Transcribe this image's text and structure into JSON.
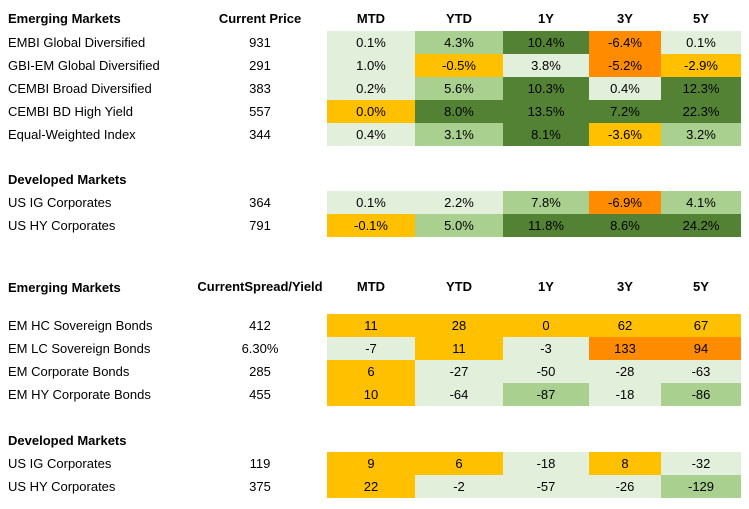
{
  "columns": [
    "MTD",
    "YTD",
    "1Y",
    "3Y",
    "5Y"
  ],
  "table1": {
    "em_title": "Emerging Markets",
    "price_header": "Current Price",
    "em_rows": [
      {
        "name": "EMBI Global Diversified",
        "price": "931",
        "vals": [
          "0.1%",
          "4.3%",
          "10.4%",
          "-6.4%",
          "0.1%"
        ]
      },
      {
        "name": "GBI-EM Global Diversified",
        "price": "291",
        "vals": [
          "1.0%",
          "-0.5%",
          "3.8%",
          "-5.2%",
          "-2.9%"
        ]
      },
      {
        "name": "CEMBI Broad Diversified",
        "price": "383",
        "vals": [
          "0.2%",
          "5.6%",
          "10.3%",
          "0.4%",
          "12.3%"
        ]
      },
      {
        "name": "CEMBI BD High Yield",
        "price": "557",
        "vals": [
          "0.0%",
          "8.0%",
          "13.5%",
          "7.2%",
          "22.3%"
        ]
      },
      {
        "name": "Equal-Weighted Index",
        "price": "344",
        "vals": [
          "0.4%",
          "3.1%",
          "8.1%",
          "-3.6%",
          "3.2%"
        ]
      }
    ],
    "dm_title": "Developed Markets",
    "dm_rows": [
      {
        "name": "US IG Corporates",
        "price": "364",
        "vals": [
          "0.1%",
          "2.2%",
          "7.8%",
          "-6.9%",
          "4.1%"
        ]
      },
      {
        "name": "US HY Corporates",
        "price": "791",
        "vals": [
          "-0.1%",
          "5.0%",
          "11.8%",
          "8.6%",
          "24.2%"
        ]
      }
    ]
  },
  "table2": {
    "em_title": "Emerging Markets",
    "spread_header_line1": "Current",
    "spread_header_line2": "Spread/Yield",
    "em_rows": [
      {
        "name": "EM HC Sovereign Bonds",
        "price": "412",
        "vals": [
          "11",
          "28",
          "0",
          "62",
          "67"
        ]
      },
      {
        "name": "EM LC Sovereign Bonds",
        "price": "6.30%",
        "vals": [
          "-7",
          "11",
          "-3",
          "133",
          "94"
        ]
      },
      {
        "name": "EM Corporate Bonds",
        "price": "285",
        "vals": [
          "6",
          "-27",
          "-50",
          "-28",
          "-63"
        ]
      },
      {
        "name": "EM HY Corporate Bonds",
        "price": "455",
        "vals": [
          "10",
          "-64",
          "-87",
          "-18",
          "-86"
        ]
      }
    ],
    "dm_title": "Developed Markets",
    "dm_rows": [
      {
        "name": "US IG Corporates",
        "price": "119",
        "vals": [
          "9",
          "6",
          "-18",
          "8",
          "-32"
        ]
      },
      {
        "name": "US HY Corporates",
        "price": "375",
        "vals": [
          "22",
          "-2",
          "-57",
          "-26",
          "-129"
        ]
      }
    ]
  },
  "colors": {
    "darkgreen": "#548235",
    "midgreen": "#a9d08e",
    "lightgreen": "#e2efda",
    "yellow": "#ffc000",
    "orange": "#ff8c00"
  }
}
